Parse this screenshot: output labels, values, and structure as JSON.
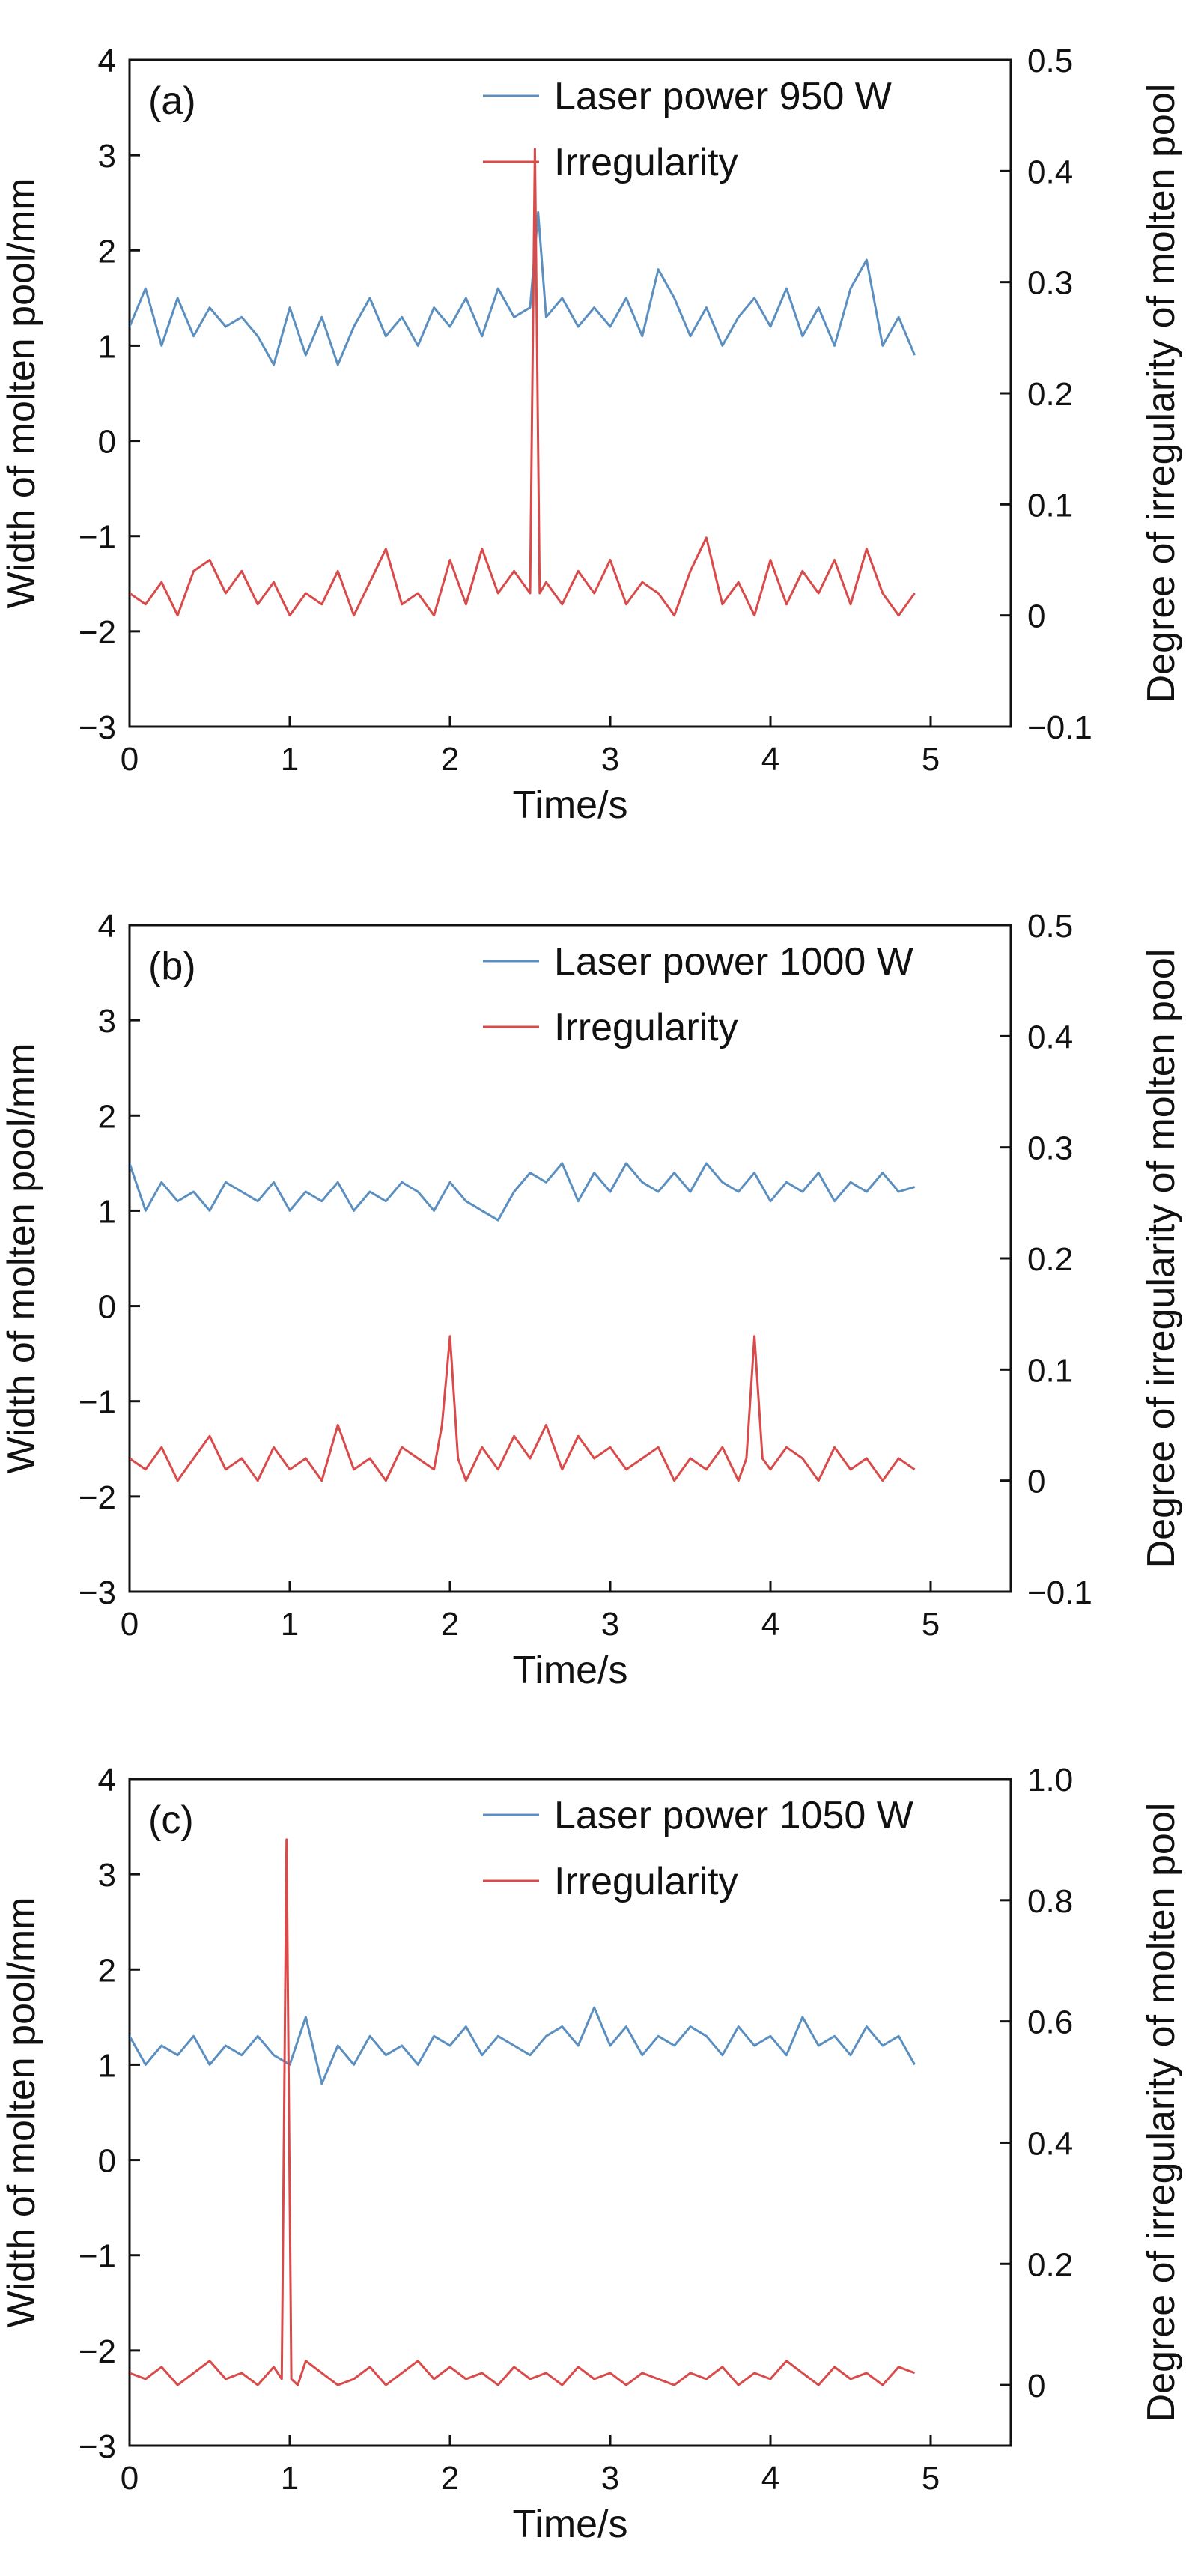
{
  "figure": {
    "colors": {
      "width_series": "#5b8fc0",
      "irregularity_series": "#d94a4a",
      "axis": "#111111"
    }
  },
  "chart_data": [
    {
      "type": "line",
      "panel_label": "(a)",
      "xlabel": "Time/s",
      "ylabel_left": "Width of molten pool/mm",
      "ylabel_right": "Degree of irregularity of molten pool",
      "xlim": [
        0,
        5.5
      ],
      "ylim_left": [
        -3,
        4
      ],
      "ylim_right": [
        -0.1,
        0.5
      ],
      "xticks": [
        0,
        1,
        2,
        3,
        4,
        5
      ],
      "yticks_left": [
        -3,
        -2,
        -1,
        0,
        1,
        2,
        3,
        4
      ],
      "yticks_right": [
        -0.1,
        0,
        0.1,
        0.2,
        0.3,
        0.4,
        0.5
      ],
      "xtick_labels": [
        "0",
        "1",
        "2",
        "3",
        "4",
        "5"
      ],
      "ytick_labels_left": [
        "−3",
        "−2",
        "−1",
        "0",
        "1",
        "2",
        "3",
        "4"
      ],
      "ytick_labels_right": [
        "−0.1",
        "0",
        "0.1",
        "0.2",
        "0.3",
        "0.4",
        "0.5"
      ],
      "legend_position": "top-right",
      "series": [
        {
          "name": "Laser power 950 W",
          "axis": "left",
          "color": "#5b8fc0",
          "x": [
            0.0,
            0.1,
            0.2,
            0.3,
            0.4,
            0.5,
            0.6,
            0.7,
            0.8,
            0.9,
            1.0,
            1.1,
            1.2,
            1.3,
            1.4,
            1.5,
            1.6,
            1.7,
            1.8,
            1.9,
            2.0,
            2.1,
            2.2,
            2.3,
            2.4,
            2.5,
            2.55,
            2.6,
            2.7,
            2.8,
            2.9,
            3.0,
            3.1,
            3.2,
            3.3,
            3.4,
            3.5,
            3.6,
            3.7,
            3.8,
            3.9,
            4.0,
            4.1,
            4.2,
            4.3,
            4.4,
            4.5,
            4.6,
            4.7,
            4.8,
            4.9
          ],
          "values": [
            1.2,
            1.6,
            1.0,
            1.5,
            1.1,
            1.4,
            1.2,
            1.3,
            1.1,
            0.8,
            1.4,
            0.9,
            1.3,
            0.8,
            1.2,
            1.5,
            1.1,
            1.3,
            1.0,
            1.4,
            1.2,
            1.5,
            1.1,
            1.6,
            1.3,
            1.4,
            2.4,
            1.3,
            1.5,
            1.2,
            1.4,
            1.2,
            1.5,
            1.1,
            1.8,
            1.5,
            1.1,
            1.4,
            1.0,
            1.3,
            1.5,
            1.2,
            1.6,
            1.1,
            1.4,
            1.0,
            1.6,
            1.9,
            1.0,
            1.3,
            0.9
          ]
        },
        {
          "name": "Irregularity",
          "axis": "right",
          "color": "#d94a4a",
          "x": [
            0.0,
            0.1,
            0.2,
            0.3,
            0.4,
            0.5,
            0.6,
            0.7,
            0.8,
            0.9,
            1.0,
            1.1,
            1.2,
            1.3,
            1.4,
            1.5,
            1.6,
            1.7,
            1.8,
            1.9,
            2.0,
            2.1,
            2.2,
            2.3,
            2.4,
            2.5,
            2.53,
            2.56,
            2.6,
            2.7,
            2.8,
            2.9,
            3.0,
            3.1,
            3.2,
            3.3,
            3.4,
            3.5,
            3.6,
            3.7,
            3.8,
            3.9,
            4.0,
            4.1,
            4.2,
            4.3,
            4.4,
            4.5,
            4.6,
            4.7,
            4.8,
            4.9
          ],
          "values": [
            0.02,
            0.01,
            0.03,
            0.0,
            0.04,
            0.05,
            0.02,
            0.04,
            0.01,
            0.03,
            0.0,
            0.02,
            0.01,
            0.04,
            0.0,
            0.03,
            0.06,
            0.01,
            0.02,
            0.0,
            0.05,
            0.01,
            0.06,
            0.02,
            0.04,
            0.02,
            0.42,
            0.02,
            0.03,
            0.01,
            0.04,
            0.02,
            0.05,
            0.01,
            0.03,
            0.02,
            0.0,
            0.04,
            0.07,
            0.01,
            0.03,
            0.0,
            0.05,
            0.01,
            0.04,
            0.02,
            0.05,
            0.01,
            0.06,
            0.02,
            0.0,
            0.02
          ]
        }
      ]
    },
    {
      "type": "line",
      "panel_label": "(b)",
      "xlabel": "Time/s",
      "ylabel_left": "Width of molten pool/mm",
      "ylabel_right": "Degree of irregularity of molten pool",
      "xlim": [
        0,
        5.5
      ],
      "ylim_left": [
        -3,
        4
      ],
      "ylim_right": [
        -0.1,
        0.5
      ],
      "xticks": [
        0,
        1,
        2,
        3,
        4,
        5
      ],
      "yticks_left": [
        -3,
        -2,
        -1,
        0,
        1,
        2,
        3,
        4
      ],
      "yticks_right": [
        -0.1,
        0,
        0.1,
        0.2,
        0.3,
        0.4,
        0.5
      ],
      "xtick_labels": [
        "0",
        "1",
        "2",
        "3",
        "4",
        "5"
      ],
      "ytick_labels_left": [
        "−3",
        "−2",
        "−1",
        "0",
        "1",
        "2",
        "3",
        "4"
      ],
      "ytick_labels_right": [
        "−0.1",
        "0",
        "0.1",
        "0.2",
        "0.3",
        "0.4",
        "0.5"
      ],
      "legend_position": "top-right",
      "series": [
        {
          "name": "Laser power 1000 W",
          "axis": "left",
          "color": "#5b8fc0",
          "x": [
            0.0,
            0.1,
            0.2,
            0.3,
            0.4,
            0.5,
            0.6,
            0.7,
            0.8,
            0.9,
            1.0,
            1.1,
            1.2,
            1.3,
            1.4,
            1.5,
            1.6,
            1.7,
            1.8,
            1.9,
            2.0,
            2.1,
            2.2,
            2.3,
            2.4,
            2.5,
            2.6,
            2.7,
            2.8,
            2.9,
            3.0,
            3.1,
            3.2,
            3.3,
            3.4,
            3.5,
            3.6,
            3.7,
            3.8,
            3.9,
            4.0,
            4.1,
            4.2,
            4.3,
            4.4,
            4.5,
            4.6,
            4.7,
            4.8,
            4.9
          ],
          "values": [
            1.5,
            1.0,
            1.3,
            1.1,
            1.2,
            1.0,
            1.3,
            1.2,
            1.1,
            1.3,
            1.0,
            1.2,
            1.1,
            1.3,
            1.0,
            1.2,
            1.1,
            1.3,
            1.2,
            1.0,
            1.3,
            1.1,
            1.0,
            0.9,
            1.2,
            1.4,
            1.3,
            1.5,
            1.1,
            1.4,
            1.2,
            1.5,
            1.3,
            1.2,
            1.4,
            1.2,
            1.5,
            1.3,
            1.2,
            1.4,
            1.1,
            1.3,
            1.2,
            1.4,
            1.1,
            1.3,
            1.2,
            1.4,
            1.2,
            1.25
          ]
        },
        {
          "name": "Irregularity",
          "axis": "right",
          "color": "#d94a4a",
          "x": [
            0.0,
            0.1,
            0.2,
            0.3,
            0.4,
            0.5,
            0.6,
            0.7,
            0.8,
            0.9,
            1.0,
            1.1,
            1.2,
            1.3,
            1.4,
            1.5,
            1.6,
            1.7,
            1.8,
            1.9,
            1.95,
            2.0,
            2.05,
            2.1,
            2.2,
            2.3,
            2.4,
            2.5,
            2.6,
            2.7,
            2.8,
            2.9,
            3.0,
            3.1,
            3.2,
            3.3,
            3.4,
            3.5,
            3.6,
            3.7,
            3.8,
            3.85,
            3.9,
            3.95,
            4.0,
            4.1,
            4.2,
            4.3,
            4.4,
            4.5,
            4.6,
            4.7,
            4.8,
            4.9
          ],
          "values": [
            0.02,
            0.01,
            0.03,
            0.0,
            0.02,
            0.04,
            0.01,
            0.02,
            0.0,
            0.03,
            0.01,
            0.02,
            0.0,
            0.05,
            0.01,
            0.02,
            0.0,
            0.03,
            0.02,
            0.01,
            0.05,
            0.13,
            0.02,
            0.0,
            0.03,
            0.01,
            0.04,
            0.02,
            0.05,
            0.01,
            0.04,
            0.02,
            0.03,
            0.01,
            0.02,
            0.03,
            0.0,
            0.02,
            0.01,
            0.03,
            0.0,
            0.02,
            0.13,
            0.02,
            0.01,
            0.03,
            0.02,
            0.0,
            0.03,
            0.01,
            0.02,
            0.0,
            0.02,
            0.01
          ]
        }
      ]
    },
    {
      "type": "line",
      "panel_label": "(c)",
      "xlabel": "Time/s",
      "ylabel_left": "Width of molten pool/mm",
      "ylabel_right": "Degree of irregularity of molten pool",
      "xlim": [
        0,
        5.5
      ],
      "ylim_left": [
        -3,
        4
      ],
      "ylim_right": [
        -0.1,
        1.0
      ],
      "xticks": [
        0,
        1,
        2,
        3,
        4,
        5
      ],
      "yticks_left": [
        -3,
        -2,
        -1,
        0,
        1,
        2,
        3,
        4
      ],
      "yticks_right": [
        0,
        0.2,
        0.4,
        0.6,
        0.8,
        1.0
      ],
      "xtick_labels": [
        "0",
        "1",
        "2",
        "3",
        "4",
        "5"
      ],
      "ytick_labels_left": [
        "−3",
        "−2",
        "−1",
        "0",
        "1",
        "2",
        "3",
        "4"
      ],
      "ytick_labels_right": [
        "0",
        "0.2",
        "0.4",
        "0.6",
        "0.8",
        "1.0"
      ],
      "legend_position": "top-right",
      "series": [
        {
          "name": "Laser power 1050 W",
          "axis": "left",
          "color": "#5b8fc0",
          "x": [
            0.0,
            0.1,
            0.2,
            0.3,
            0.4,
            0.5,
            0.6,
            0.7,
            0.8,
            0.9,
            1.0,
            1.1,
            1.2,
            1.3,
            1.4,
            1.5,
            1.6,
            1.7,
            1.8,
            1.9,
            2.0,
            2.1,
            2.2,
            2.3,
            2.4,
            2.5,
            2.6,
            2.7,
            2.8,
            2.9,
            3.0,
            3.1,
            3.2,
            3.3,
            3.4,
            3.5,
            3.6,
            3.7,
            3.8,
            3.9,
            4.0,
            4.1,
            4.2,
            4.3,
            4.4,
            4.5,
            4.6,
            4.7,
            4.8,
            4.9
          ],
          "values": [
            1.3,
            1.0,
            1.2,
            1.1,
            1.3,
            1.0,
            1.2,
            1.1,
            1.3,
            1.1,
            1.0,
            1.5,
            0.8,
            1.2,
            1.0,
            1.3,
            1.1,
            1.2,
            1.0,
            1.3,
            1.2,
            1.4,
            1.1,
            1.3,
            1.2,
            1.1,
            1.3,
            1.4,
            1.2,
            1.6,
            1.2,
            1.4,
            1.1,
            1.3,
            1.2,
            1.4,
            1.3,
            1.1,
            1.4,
            1.2,
            1.3,
            1.1,
            1.5,
            1.2,
            1.3,
            1.1,
            1.4,
            1.2,
            1.3,
            1.0
          ]
        },
        {
          "name": "Irregularity",
          "axis": "right",
          "color": "#d94a4a",
          "x": [
            0.0,
            0.1,
            0.2,
            0.3,
            0.4,
            0.5,
            0.6,
            0.7,
            0.8,
            0.9,
            0.95,
            0.98,
            1.01,
            1.05,
            1.1,
            1.2,
            1.3,
            1.4,
            1.5,
            1.6,
            1.7,
            1.8,
            1.9,
            2.0,
            2.1,
            2.2,
            2.3,
            2.4,
            2.5,
            2.6,
            2.7,
            2.8,
            2.9,
            3.0,
            3.1,
            3.2,
            3.3,
            3.4,
            3.5,
            3.6,
            3.7,
            3.8,
            3.9,
            4.0,
            4.1,
            4.2,
            4.3,
            4.4,
            4.5,
            4.6,
            4.7,
            4.8,
            4.9
          ],
          "values": [
            0.02,
            0.01,
            0.03,
            0.0,
            0.02,
            0.04,
            0.01,
            0.02,
            0.0,
            0.03,
            0.01,
            0.9,
            0.01,
            0.0,
            0.04,
            0.02,
            0.0,
            0.01,
            0.03,
            0.0,
            0.02,
            0.04,
            0.01,
            0.03,
            0.01,
            0.02,
            0.0,
            0.03,
            0.01,
            0.02,
            0.0,
            0.03,
            0.01,
            0.02,
            0.0,
            0.02,
            0.01,
            0.0,
            0.02,
            0.01,
            0.03,
            0.0,
            0.02,
            0.01,
            0.04,
            0.02,
            0.0,
            0.03,
            0.01,
            0.02,
            0.0,
            0.03,
            0.02
          ]
        }
      ]
    }
  ]
}
